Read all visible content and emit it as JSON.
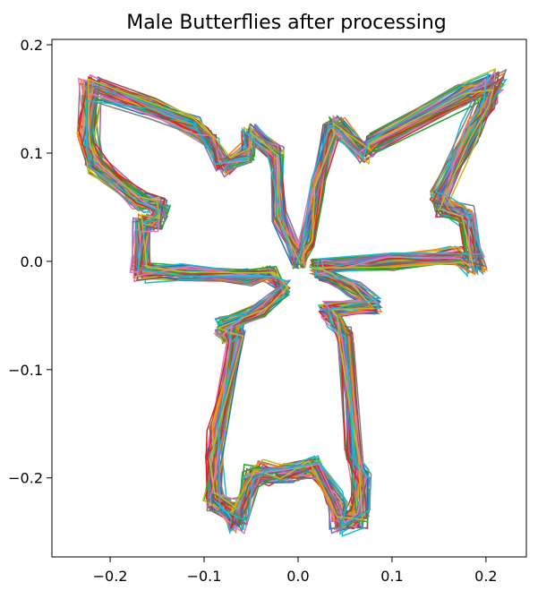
{
  "chart_data": {
    "type": "line",
    "title": "Male Butterflies after processing",
    "xlabel": "",
    "ylabel": "",
    "xlim": [
      -0.262,
      0.243
    ],
    "ylim": [
      -0.273,
      0.205
    ],
    "xticks": [
      -0.2,
      -0.1,
      0.0,
      0.1,
      0.2
    ],
    "xtick_labels": [
      "−0.2",
      "−0.1",
      "0.0",
      "0.1",
      "0.2"
    ],
    "yticks": [
      -0.2,
      -0.1,
      0.0,
      0.1,
      0.2
    ],
    "ytick_labels": [
      "−0.2",
      "−0.1",
      "0.0",
      "0.1",
      "0.2"
    ],
    "grid": false,
    "legend": false,
    "series_count": 60,
    "series_colors": [
      "#1f77b4",
      "#ff7f0e",
      "#2ca02c",
      "#d62728",
      "#9467bd",
      "#8c564b",
      "#e377c2",
      "#7f7f7f",
      "#bcbd22",
      "#17becf"
    ],
    "mean_outline": {
      "x": [
        0.0,
        -0.02,
        -0.023,
        -0.05,
        -0.055,
        -0.08,
        -0.095,
        -0.112,
        -0.158,
        -0.22,
        -0.225,
        -0.215,
        -0.168,
        -0.146,
        -0.15,
        -0.165,
        -0.168,
        -0.12,
        -0.05,
        -0.03,
        -0.015,
        -0.04,
        -0.08,
        -0.075,
        -0.065,
        -0.085,
        -0.088,
        -0.09,
        -0.07,
        -0.063,
        -0.05,
        -0.035,
        -0.01,
        0.02,
        0.04,
        0.045,
        0.065,
        0.068,
        0.06,
        0.05,
        0.04,
        0.03,
        0.08,
        0.06,
        0.025,
        0.02,
        0.1,
        0.17,
        0.19,
        0.18,
        0.155,
        0.15,
        0.185,
        0.2,
        0.21,
        0.18,
        0.08,
        0.07,
        0.04,
        0.035,
        0.02,
        0.01,
        0.0
      ],
      "y": [
        0.0,
        0.04,
        0.1,
        0.118,
        0.1,
        0.088,
        0.112,
        0.125,
        0.142,
        0.16,
        0.115,
        0.09,
        0.055,
        0.05,
        0.035,
        0.035,
        -0.01,
        -0.01,
        -0.015,
        -0.012,
        -0.025,
        -0.045,
        -0.06,
        -0.07,
        -0.065,
        -0.155,
        -0.18,
        -0.22,
        -0.23,
        -0.24,
        -0.2,
        -0.195,
        -0.195,
        -0.19,
        -0.22,
        -0.24,
        -0.235,
        -0.2,
        -0.18,
        -0.07,
        -0.055,
        -0.045,
        -0.04,
        -0.025,
        -0.01,
        -0.005,
        0.0,
        0.005,
        -0.003,
        0.04,
        0.05,
        0.06,
        0.12,
        0.145,
        0.165,
        0.155,
        0.11,
        0.1,
        0.125,
        0.12,
        0.07,
        0.02,
        0.0
      ]
    }
  }
}
